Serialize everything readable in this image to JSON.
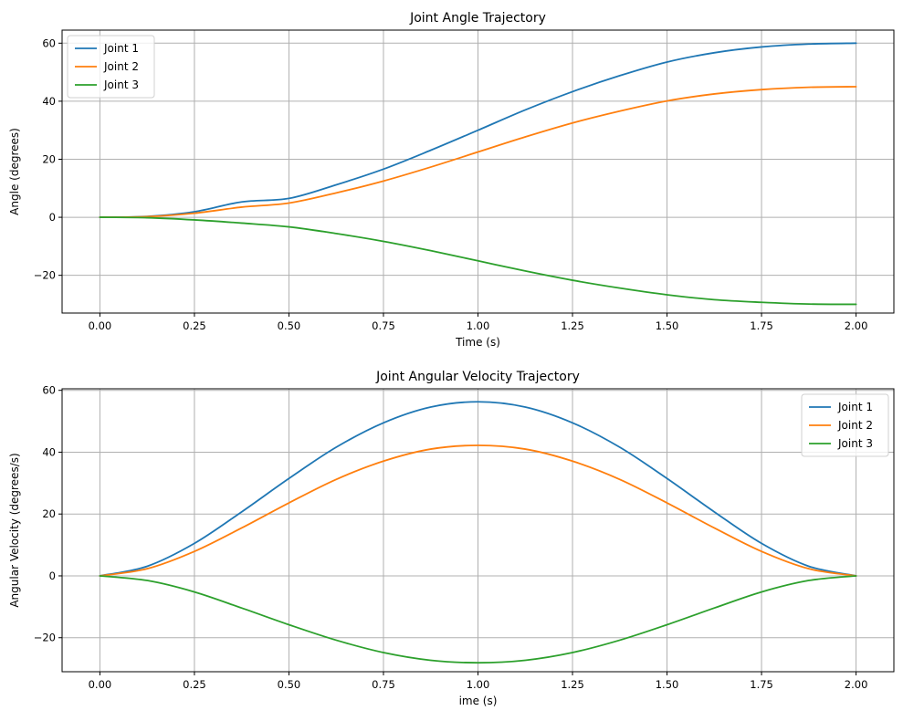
{
  "chart_data": [
    {
      "type": "line",
      "title": "Joint Angle Trajectory",
      "xlabel": "Time (s)",
      "ylabel": "Angle (degrees)",
      "xlim": [
        -0.1,
        2.1
      ],
      "ylim": [
        -33,
        64.5
      ],
      "xticks": [
        0.0,
        0.25,
        0.5,
        0.75,
        1.0,
        1.25,
        1.5,
        1.75,
        2.0
      ],
      "xtick_labels": [
        "0.00",
        "0.25",
        "0.50",
        "0.75",
        "1.00",
        "1.25",
        "1.50",
        "1.75",
        "2.00"
      ],
      "yticks": [
        -20,
        0,
        20,
        40,
        60
      ],
      "ytick_labels": [
        "−20",
        "0",
        "20",
        "40",
        "60"
      ],
      "grid": true,
      "legend": "top-left",
      "x": [
        0.0,
        0.125,
        0.25,
        0.375,
        0.5,
        0.625,
        0.75,
        0.875,
        1.0,
        1.125,
        1.25,
        1.375,
        1.5,
        1.625,
        1.75,
        1.875,
        2.0
      ],
      "series": [
        {
          "name": "Joint 1",
          "color": "#1f77b4",
          "values": [
            0,
            0.29,
            1.9,
            5.3,
            6.5,
            11.2,
            16.6,
            23.1,
            30.0,
            37.0,
            43.3,
            48.8,
            53.5,
            56.7,
            58.7,
            59.7,
            60.0
          ]
        },
        {
          "name": "Joint 2",
          "color": "#ff7f0e",
          "values": [
            0,
            0.22,
            1.4,
            3.5,
            4.9,
            8.4,
            12.5,
            17.3,
            22.5,
            27.7,
            32.5,
            36.6,
            40.1,
            42.5,
            44.0,
            44.8,
            45.0
          ]
        },
        {
          "name": "Joint 3",
          "color": "#2ca02c",
          "values": [
            0,
            -0.15,
            -0.9,
            -2.0,
            -3.3,
            -5.6,
            -8.3,
            -11.5,
            -15.0,
            -18.5,
            -21.7,
            -24.4,
            -26.7,
            -28.4,
            -29.3,
            -29.9,
            -30.0
          ]
        }
      ]
    },
    {
      "type": "line",
      "title": "Joint Angular Velocity Trajectory",
      "xlabel": "ime (s)",
      "ylabel": "Angular Velocity (degrees/s)",
      "xlim": [
        -0.1,
        2.1
      ],
      "ylim": [
        -31,
        60.5
      ],
      "xticks": [
        0.0,
        0.25,
        0.5,
        0.75,
        1.0,
        1.25,
        1.5,
        1.75,
        2.0
      ],
      "xtick_labels": [
        "0.00",
        "0.25",
        "0.50",
        "0.75",
        "1.00",
        "1.25",
        "1.50",
        "1.75",
        "2.00"
      ],
      "yticks": [
        -20,
        0,
        20,
        40,
        60
      ],
      "ytick_labels": [
        "−20",
        "0",
        "20",
        "40",
        "60"
      ],
      "grid": true,
      "legend": "top-right",
      "x": [
        0.0,
        0.125,
        0.25,
        0.375,
        0.5,
        0.625,
        0.75,
        0.875,
        1.0,
        1.125,
        1.25,
        1.375,
        1.5,
        1.625,
        1.75,
        1.875,
        2.0
      ],
      "series": [
        {
          "name": "Joint 1",
          "color": "#1f77b4",
          "values": [
            0,
            3.1,
            10.5,
            20.7,
            31.5,
            41.6,
            49.5,
            54.6,
            56.3,
            54.6,
            49.5,
            41.6,
            31.5,
            20.7,
            10.5,
            3.1,
            0
          ]
        },
        {
          "name": "Joint 2",
          "color": "#ff7f0e",
          "values": [
            0,
            2.3,
            7.9,
            15.5,
            23.6,
            31.2,
            37.1,
            41.0,
            42.2,
            41.0,
            37.1,
            31.2,
            23.6,
            15.5,
            7.9,
            2.3,
            0
          ]
        },
        {
          "name": "Joint 3",
          "color": "#2ca02c",
          "values": [
            0,
            -1.5,
            -5.2,
            -10.4,
            -15.8,
            -20.8,
            -24.8,
            -27.3,
            -28.1,
            -27.3,
            -24.8,
            -20.8,
            -15.8,
            -10.4,
            -5.2,
            -1.5,
            0
          ]
        }
      ]
    }
  ]
}
